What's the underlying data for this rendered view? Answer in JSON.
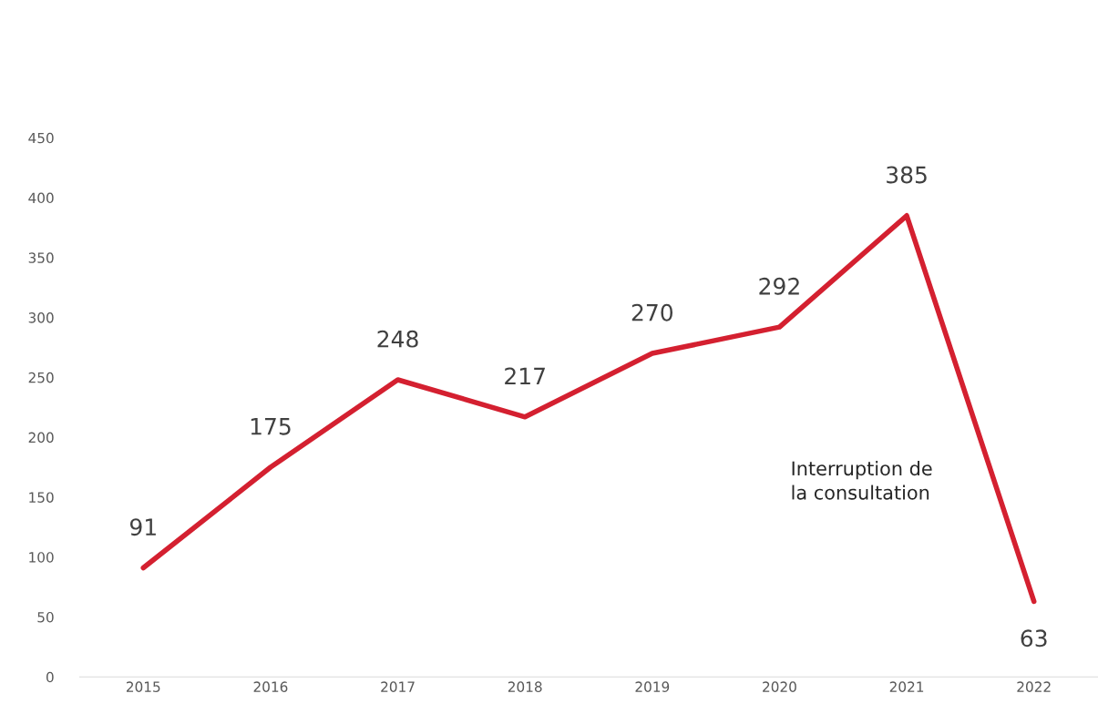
{
  "chart_data": {
    "type": "line",
    "categories": [
      "2015",
      "2016",
      "2017",
      "2018",
      "2019",
      "2020",
      "2021",
      "2022"
    ],
    "series": [
      {
        "color": "#d42030",
        "values": [
          91,
          175,
          248,
          217,
          270,
          292,
          385,
          63
        ]
      }
    ],
    "ylim": [
      0,
      450
    ],
    "yticks": [
      0,
      50,
      100,
      150,
      200,
      250,
      300,
      350,
      400,
      450
    ],
    "grid": false,
    "legend": false,
    "marker": "none",
    "line_style": "solid",
    "data_labels": true,
    "annotations": [
      "Interruption de\nla consultation"
    ]
  }
}
